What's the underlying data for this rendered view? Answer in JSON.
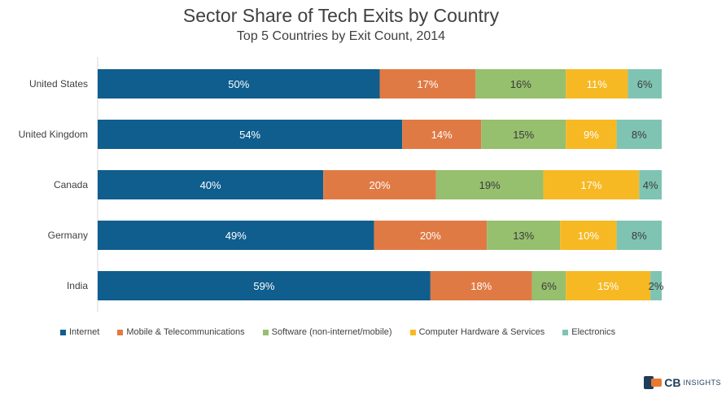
{
  "chart_data": {
    "type": "bar",
    "orientation": "horizontal",
    "stacked": true,
    "title": "Sector Share of Tech Exits by Country",
    "subtitle": "Top 5 Countries by Exit Count, 2014",
    "categories": [
      "United States",
      "United Kingdom",
      "Canada",
      "Germany",
      "India"
    ],
    "series": [
      {
        "name": "Internet",
        "color": "#0f5e8e",
        "values": [
          50,
          54,
          40,
          49,
          59
        ]
      },
      {
        "name": "Mobile & Telecommunications",
        "color": "#e07a44",
        "values": [
          17,
          14,
          20,
          20,
          18
        ]
      },
      {
        "name": "Software (non-internet/mobile)",
        "color": "#96bf6e",
        "values": [
          16,
          15,
          19,
          13,
          6
        ]
      },
      {
        "name": "Computer Hardware & Services",
        "color": "#f7b923",
        "values": [
          11,
          9,
          17,
          10,
          15
        ]
      },
      {
        "name": "Electronics",
        "color": "#7fc4b2",
        "values": [
          6,
          8,
          4,
          8,
          2
        ]
      }
    ],
    "value_suffix": "%",
    "legend_position": "bottom"
  },
  "brand": {
    "cb": "CB",
    "insights": "INSIGHTS"
  }
}
